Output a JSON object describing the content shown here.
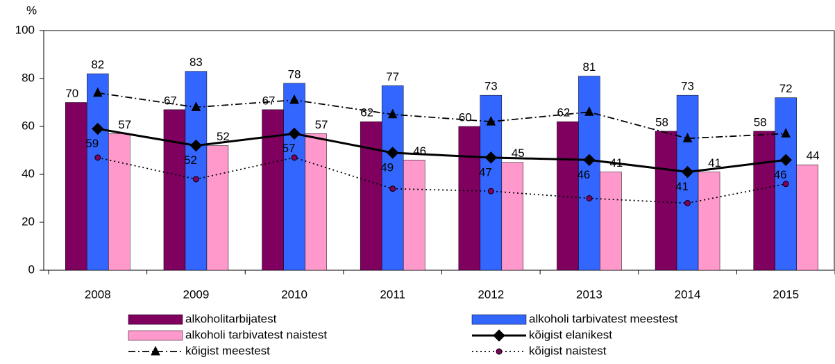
{
  "chart_data": {
    "type": "bar",
    "ylabel": "%",
    "categories": [
      "2008",
      "2009",
      "2010",
      "2011",
      "2012",
      "2013",
      "2014",
      "2015"
    ],
    "ylim": [
      0,
      100
    ],
    "yticks": [
      0,
      20,
      40,
      60,
      80,
      100
    ],
    "grid": false,
    "series": [
      {
        "name": "alkoholitarbijatest",
        "type": "bar",
        "color": "#800060",
        "show_labels": true,
        "values": [
          70,
          67,
          67,
          62,
          60,
          62,
          58,
          58
        ]
      },
      {
        "name": "alkoholi tarbivatest meestest",
        "type": "bar",
        "color": "#3366ff",
        "show_labels": true,
        "values": [
          82,
          83,
          78,
          77,
          73,
          81,
          73,
          72
        ]
      },
      {
        "name": "alkoholi tarbivatest naistest",
        "type": "bar",
        "color": "#ff99cc",
        "show_labels": true,
        "values": [
          57,
          52,
          57,
          46,
          45,
          41,
          41,
          44
        ]
      },
      {
        "name": "kõigist elanikest",
        "type": "line",
        "color": "#000000",
        "line_style": "solid",
        "marker": "diamond",
        "show_labels": true,
        "values": [
          59,
          52,
          57,
          49,
          47,
          46,
          41,
          46
        ]
      },
      {
        "name": "kõigist meestest",
        "type": "line",
        "color": "#000000",
        "line_style": "dashdot",
        "marker": "triangle",
        "show_labels": false,
        "values": [
          74,
          68,
          71,
          65,
          62,
          66,
          55,
          57
        ]
      },
      {
        "name": "kõigist naistest",
        "type": "line",
        "color": "#000000",
        "marker_color": "#800060",
        "line_style": "dotted",
        "marker": "circle",
        "show_labels": false,
        "values": [
          47,
          38,
          47,
          34,
          33,
          30,
          28,
          36
        ]
      }
    ]
  }
}
